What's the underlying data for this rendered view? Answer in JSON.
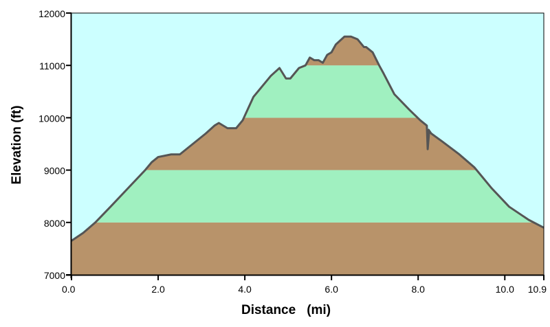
{
  "chart_data": {
    "type": "area",
    "title": "",
    "xlabel": "Distance",
    "xlabel_unit": "(mi)",
    "ylabel": "Elevation (ft)",
    "xlim": [
      0,
      10.9
    ],
    "ylim": [
      7000,
      12000
    ],
    "x_ticks": [
      0,
      2,
      4,
      6,
      8,
      10,
      10.9
    ],
    "x_tick_labels": [
      "0.0",
      "2.0",
      "4.0",
      "6.0",
      "8.0",
      "10.0",
      "10.9"
    ],
    "y_ticks": [
      7000,
      8000,
      9000,
      10000,
      11000,
      12000
    ],
    "y_tick_labels": [
      "7000",
      "8000",
      "9000",
      "10000",
      "11000",
      "12000"
    ],
    "grid": false,
    "legend": "none",
    "colors": {
      "sky": "#ccffff",
      "band_brown": "#b8936a",
      "band_green": "#a0f0c0",
      "profile_line": "#555555",
      "frame": "#000000"
    },
    "elevation_bands": [
      {
        "from": 7000,
        "to": 8000,
        "color": "#b8936a"
      },
      {
        "from": 8000,
        "to": 9000,
        "color": "#a0f0c0"
      },
      {
        "from": 9000,
        "to": 10000,
        "color": "#b8936a"
      },
      {
        "from": 10000,
        "to": 11000,
        "color": "#a0f0c0"
      },
      {
        "from": 11000,
        "to": 12000,
        "color": "#b8936a"
      }
    ],
    "series": [
      {
        "x": [
          0.0,
          0.27,
          0.55,
          0.9,
          1.3,
          1.7,
          1.85,
          2.0,
          2.3,
          2.5,
          2.8,
          3.1,
          3.3,
          3.4,
          3.6,
          3.8,
          3.95,
          4.2,
          4.4,
          4.6,
          4.8,
          4.95,
          5.05,
          5.15,
          5.25,
          5.4,
          5.5,
          5.6,
          5.7,
          5.8,
          5.9,
          6.0,
          6.1,
          6.3,
          6.45,
          6.6,
          6.75,
          6.8,
          6.95,
          7.1,
          7.2,
          7.45,
          7.8,
          8.05,
          8.2,
          8.22,
          8.25,
          8.24,
          8.3,
          8.55,
          8.95,
          9.3,
          9.7,
          10.1,
          10.55,
          10.9
        ],
        "y": [
          7650,
          7800,
          8000,
          8300,
          8650,
          9000,
          9150,
          9250,
          9300,
          9300,
          9500,
          9700,
          9850,
          9900,
          9800,
          9800,
          9950,
          10400,
          10600,
          10800,
          10950,
          10750,
          10750,
          10850,
          10950,
          11000,
          11150,
          11100,
          11100,
          11050,
          11200,
          11250,
          11400,
          11550,
          11550,
          11500,
          11350,
          11350,
          11250,
          11000,
          10850,
          10450,
          10150,
          9950,
          9850,
          9400,
          9700,
          9770,
          9700,
          9550,
          9300,
          9050,
          8650,
          8300,
          8050,
          7900
        ]
      }
    ]
  }
}
